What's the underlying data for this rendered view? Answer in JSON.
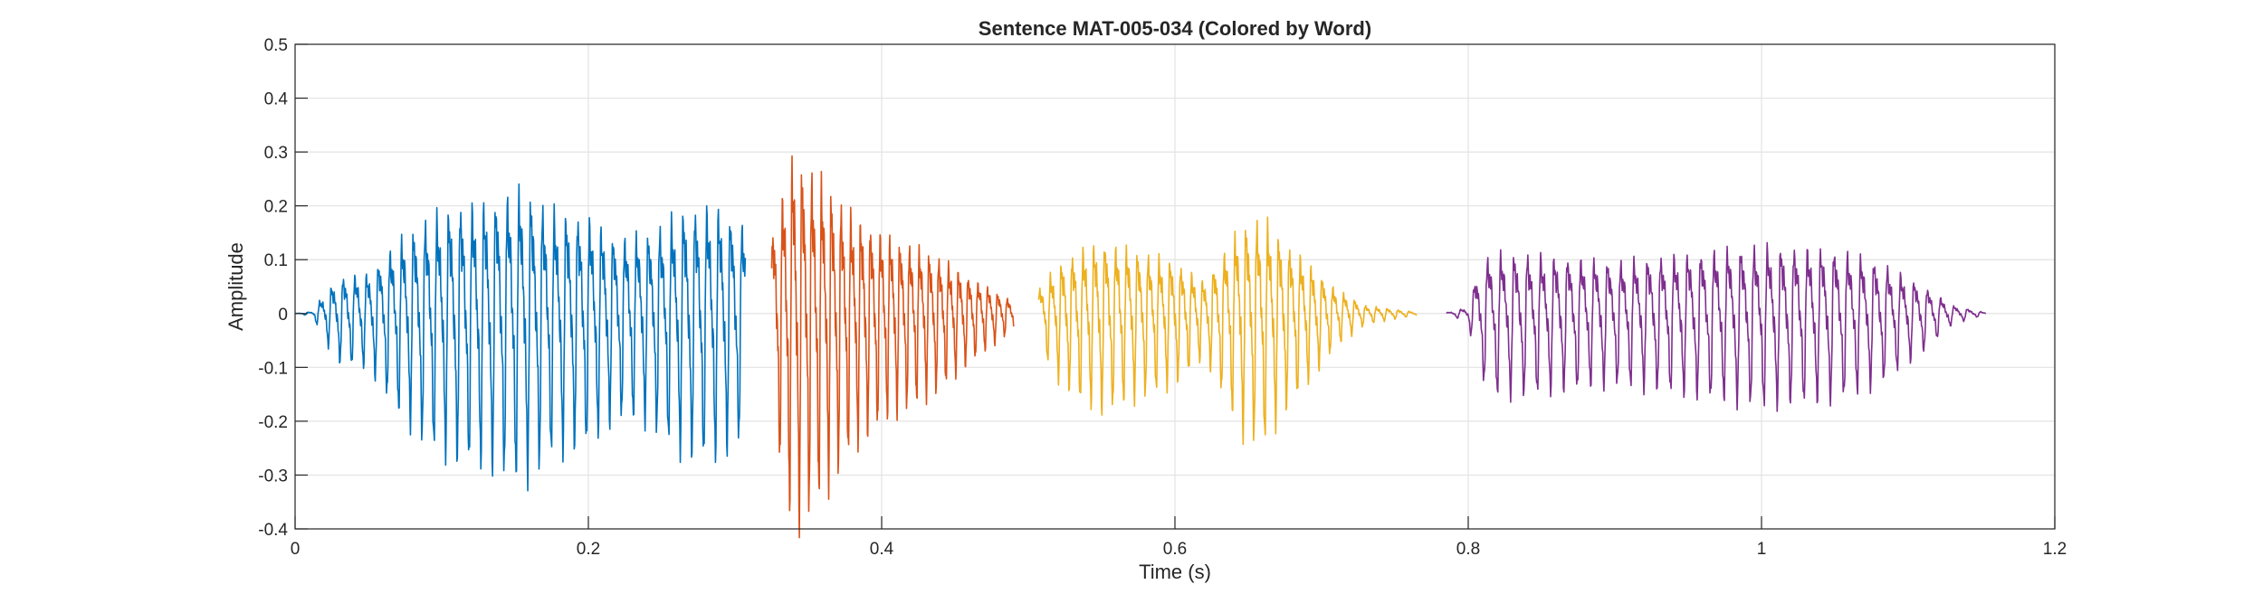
{
  "chart_data": {
    "type": "line",
    "title": "Sentence MAT-005-034 (Colored by Word)",
    "xlabel": "Time (s)",
    "ylabel": "Amplitude",
    "xlim": [
      0,
      1.2
    ],
    "ylim": [
      -0.4,
      0.5
    ],
    "xticks": [
      0,
      0.2,
      0.4,
      0.6,
      0.8,
      1,
      1.2
    ],
    "xtick_labels": [
      "0",
      "0.2",
      "0.4",
      "0.6",
      "0.8",
      "1",
      "1.2"
    ],
    "yticks": [
      -0.4,
      -0.3,
      -0.2,
      -0.1,
      0,
      0.1,
      0.2,
      0.3,
      0.4,
      0.5
    ],
    "ytick_labels": [
      "-0.4",
      "-0.3",
      "-0.2",
      "-0.1",
      "0",
      "0.1",
      "0.2",
      "0.3",
      "0.4",
      "0.5"
    ],
    "grid": true,
    "series": [
      {
        "color": "#0072BD",
        "x_range": [
          0.0,
          0.307
        ],
        "osc_freq_hz": 125,
        "envelope": [
          [
            0.0,
            0.0
          ],
          [
            0.012,
            0.005
          ],
          [
            0.02,
            0.05
          ],
          [
            0.03,
            0.09
          ],
          [
            0.05,
            0.1
          ],
          [
            0.07,
            0.18
          ],
          [
            0.09,
            0.24
          ],
          [
            0.11,
            0.27
          ],
          [
            0.13,
            0.28
          ],
          [
            0.155,
            0.31
          ],
          [
            0.175,
            0.26
          ],
          [
            0.2,
            0.24
          ],
          [
            0.22,
            0.19
          ],
          [
            0.24,
            0.2
          ],
          [
            0.265,
            0.26
          ],
          [
            0.285,
            0.27
          ],
          [
            0.3,
            0.24
          ],
          [
            0.307,
            0.22
          ]
        ]
      },
      {
        "color": "#D95319",
        "x_range": [
          0.325,
          0.49
        ],
        "osc_freq_hz": 150,
        "envelope": [
          [
            0.325,
            0.2
          ],
          [
            0.34,
            0.4
          ],
          [
            0.36,
            0.33
          ],
          [
            0.38,
            0.25
          ],
          [
            0.4,
            0.2
          ],
          [
            0.42,
            0.17
          ],
          [
            0.44,
            0.14
          ],
          [
            0.46,
            0.09
          ],
          [
            0.48,
            0.05
          ],
          [
            0.49,
            0.03
          ]
        ]
      },
      {
        "color": "#EDB120",
        "x_range": [
          0.507,
          0.765
        ],
        "osc_freq_hz": 135,
        "envelope": [
          [
            0.507,
            0.06
          ],
          [
            0.52,
            0.12
          ],
          [
            0.535,
            0.16
          ],
          [
            0.55,
            0.18
          ],
          [
            0.57,
            0.16
          ],
          [
            0.6,
            0.13
          ],
          [
            0.62,
            0.08
          ],
          [
            0.635,
            0.16
          ],
          [
            0.645,
            0.22
          ],
          [
            0.66,
            0.24
          ],
          [
            0.675,
            0.18
          ],
          [
            0.69,
            0.13
          ],
          [
            0.71,
            0.06
          ],
          [
            0.73,
            0.02
          ],
          [
            0.765,
            0.003
          ]
        ]
      },
      {
        "color": "#7E2F8E",
        "x_range": [
          0.785,
          1.153
        ],
        "osc_freq_hz": 110,
        "envelope": [
          [
            0.785,
            0.002
          ],
          [
            0.8,
            0.015
          ],
          [
            0.806,
            0.1
          ],
          [
            0.815,
            0.15
          ],
          [
            0.84,
            0.15
          ],
          [
            0.9,
            0.13
          ],
          [
            0.95,
            0.15
          ],
          [
            1.0,
            0.17
          ],
          [
            1.05,
            0.16
          ],
          [
            1.08,
            0.13
          ],
          [
            1.11,
            0.07
          ],
          [
            1.13,
            0.02
          ],
          [
            1.153,
            0.002
          ]
        ]
      }
    ]
  }
}
